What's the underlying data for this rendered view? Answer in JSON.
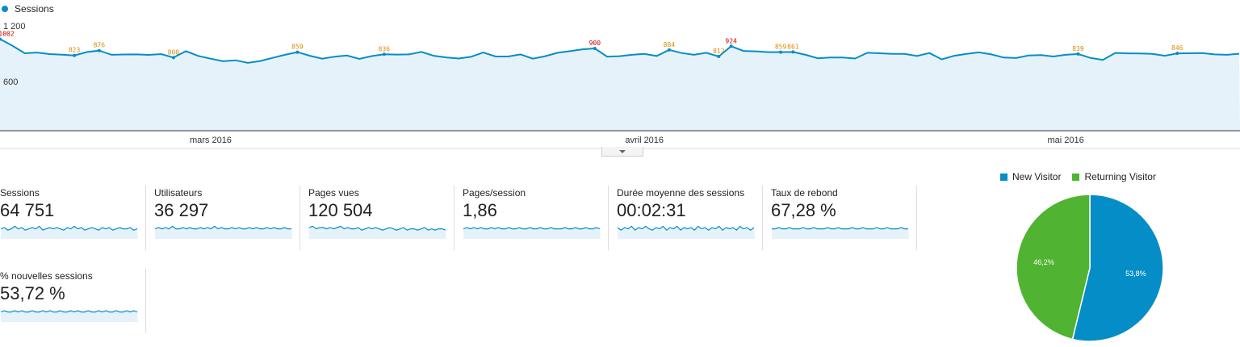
{
  "chart_data": [
    {
      "type": "area",
      "series": [
        {
          "name": "Sessions",
          "values": [
            1002,
            930,
            847,
            855,
            838,
            832,
            823,
            860,
            876,
            830,
            834,
            835,
            829,
            838,
            800,
            870,
            818,
            788,
            760,
            770,
            742,
            762,
            797,
            830,
            859,
            820,
            788,
            810,
            822,
            785,
            816,
            836,
            833,
            835,
            862,
            820,
            802,
            790,
            808,
            855,
            812,
            812,
            835,
            788,
            815,
            852,
            870,
            890,
            900,
            810,
            815,
            830,
            840,
            817,
            884,
            850,
            830,
            852,
            812,
            924,
            873,
            868,
            859,
            859,
            861,
            830,
            792,
            800,
            800,
            790,
            852,
            847,
            840,
            840,
            818,
            850,
            780,
            820,
            840,
            857,
            835,
            800,
            795,
            822,
            828,
            812,
            830,
            839,
            796,
            775,
            851,
            846,
            844,
            841,
            820,
            846,
            847,
            850,
            835,
            830,
            842
          ]
        }
      ],
      "peak_labels": [
        {
          "index": 0,
          "value": 1002,
          "color": "#cc0000"
        },
        {
          "index": 6,
          "value": 823,
          "color": "#e08a00"
        },
        {
          "index": 8,
          "value": 876,
          "color": "#e08a00"
        },
        {
          "index": 14,
          "value": 800,
          "color": "#e08a00"
        },
        {
          "index": 24,
          "value": 859,
          "color": "#e08a00"
        },
        {
          "index": 31,
          "value": 836,
          "color": "#e08a00"
        },
        {
          "index": 48,
          "value": 900,
          "color": "#cc0000"
        },
        {
          "index": 54,
          "value": 884,
          "color": "#e08a00"
        },
        {
          "index": 58,
          "value": 812,
          "color": "#e08a00"
        },
        {
          "index": 59,
          "value": 924,
          "color": "#cc0000"
        },
        {
          "index": 63,
          "value": 859,
          "color": "#e08a00"
        },
        {
          "index": 64,
          "value": 861,
          "color": "#e08a00"
        },
        {
          "index": 87,
          "value": 839,
          "color": "#e08a00"
        },
        {
          "index": 95,
          "value": 846,
          "color": "#e08a00"
        }
      ],
      "y_ticks": [
        "1 200",
        "600"
      ],
      "ylim": [
        0,
        1200
      ],
      "x_labels": [
        {
          "index": 17,
          "label": "mars 2016"
        },
        {
          "index": 52,
          "label": "avril 2016"
        },
        {
          "index": 86,
          "label": "mai 2016"
        }
      ],
      "color": "#058dc7",
      "fill": "#e6f2fa"
    },
    {
      "type": "pie",
      "series": [
        {
          "name": "New Visitor",
          "value": 53.8,
          "label": "53,8%",
          "color": "#058dc7"
        },
        {
          "name": "Returning Visitor",
          "value": 46.2,
          "label": "46,2%",
          "color": "#50b432"
        }
      ]
    }
  ],
  "metrics": [
    {
      "label": "Sessions",
      "value": "64 751",
      "spark": [
        5,
        6,
        4,
        5,
        7,
        5,
        6,
        4,
        5,
        6,
        5,
        7,
        4,
        5,
        6,
        5,
        6,
        5,
        4,
        6,
        5,
        7,
        5,
        6,
        4,
        5,
        6,
        5,
        4,
        6,
        5,
        6,
        4,
        5,
        6,
        5,
        5,
        6,
        4,
        5
      ]
    },
    {
      "label": "Utilisateurs",
      "value": "36 297",
      "spark": [
        5,
        6,
        5,
        6,
        5,
        7,
        5,
        5,
        6,
        5,
        6,
        5,
        5,
        6,
        5,
        6,
        5,
        7,
        5,
        6,
        5,
        5,
        6,
        5,
        6,
        5,
        5,
        6,
        5,
        6,
        5,
        5,
        6,
        5,
        6,
        5,
        5,
        6,
        5,
        5
      ]
    },
    {
      "label": "Pages vues",
      "value": "120 504",
      "spark": [
        6,
        7,
        5,
        6,
        6,
        5,
        6,
        5,
        6,
        7,
        5,
        6,
        5,
        5,
        6,
        4,
        5,
        6,
        5,
        6,
        5,
        4,
        5,
        6,
        5,
        4,
        5,
        6,
        4,
        5,
        5,
        4,
        5,
        6,
        4,
        5,
        4,
        5,
        5,
        4
      ]
    },
    {
      "label": "Pages/session",
      "value": "1,86",
      "spark": [
        5,
        6,
        5,
        6,
        5,
        6,
        5,
        5,
        6,
        5,
        6,
        5,
        5,
        6,
        5,
        5,
        6,
        5,
        5,
        6,
        5,
        5,
        6,
        5,
        5,
        6,
        5,
        5,
        5,
        6,
        5,
        5,
        6,
        5,
        5,
        6,
        5,
        5,
        6,
        5
      ]
    },
    {
      "label": "Durée moyenne des sessions",
      "value": "00:02:31",
      "spark": [
        6,
        4,
        6,
        5,
        7,
        4,
        6,
        5,
        7,
        5,
        4,
        6,
        5,
        7,
        4,
        6,
        5,
        7,
        4,
        6,
        5,
        6,
        4,
        7,
        5,
        6,
        4,
        6,
        5,
        7,
        4,
        6,
        5,
        6,
        4,
        7,
        5,
        6,
        4,
        6
      ]
    },
    {
      "label": "Taux de rebond",
      "value": "67,28 %",
      "spark": [
        5,
        5,
        6,
        5,
        5,
        6,
        5,
        5,
        5,
        6,
        5,
        5,
        6,
        5,
        5,
        5,
        6,
        5,
        5,
        6,
        5,
        5,
        5,
        6,
        5,
        5,
        6,
        5,
        5,
        5,
        6,
        5,
        5,
        6,
        5,
        5,
        5,
        6,
        5,
        5
      ]
    },
    {
      "label": "% nouvelles sessions",
      "value": "53,72 %",
      "spark": [
        5,
        6,
        5,
        5,
        6,
        5,
        6,
        5,
        5,
        6,
        5,
        5,
        6,
        5,
        6,
        5,
        5,
        6,
        5,
        5,
        6,
        5,
        6,
        5,
        5,
        6,
        5,
        5,
        6,
        5,
        6,
        5,
        5,
        6,
        5,
        5,
        6,
        5,
        6,
        5
      ]
    }
  ]
}
